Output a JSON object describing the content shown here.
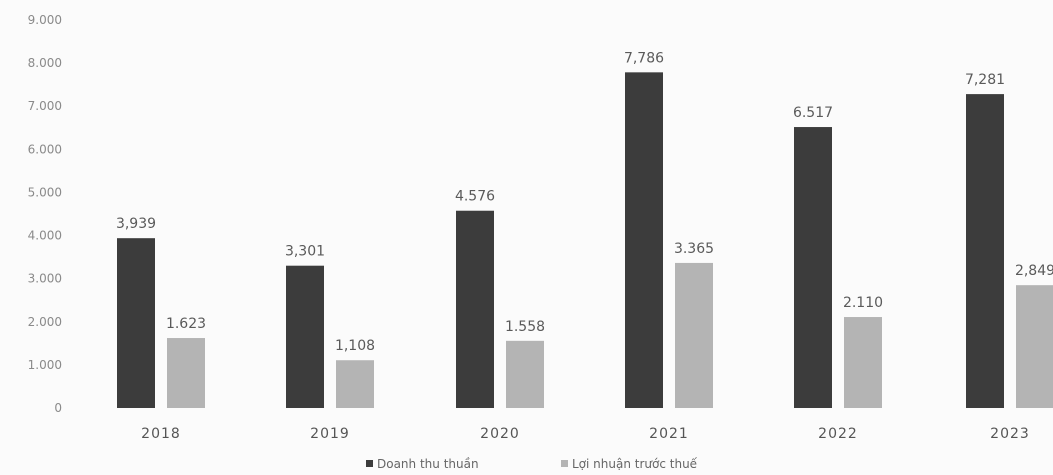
{
  "chart_data": {
    "type": "bar",
    "categories": [
      "2018",
      "2019",
      "2020",
      "2021",
      "2022",
      "2023"
    ],
    "series": [
      {
        "name": "Doanh thu thuần",
        "values": [
          3939,
          3301,
          4576,
          7786,
          6517,
          7281
        ],
        "labels": [
          "3,939",
          "3,301",
          "4.576",
          "7,786",
          "6.517",
          "7,281"
        ],
        "color": "#3c3c3c"
      },
      {
        "name": "Lợi nhuận trước thuế",
        "values": [
          1623,
          1108,
          1558,
          3365,
          2110,
          2849
        ],
        "labels": [
          "1.623",
          "1,108",
          "1.558",
          "3.365",
          "2.110",
          "2,849"
        ],
        "color": "#b4b4b4"
      }
    ],
    "y_ticks": [
      "0",
      "1.000",
      "2.000",
      "3.000",
      "4.000",
      "5.000",
      "6.000",
      "7.000",
      "8.000",
      "9.000"
    ],
    "ylim": [
      0,
      9000
    ],
    "grid": false,
    "legend_position": "bottom-center"
  }
}
